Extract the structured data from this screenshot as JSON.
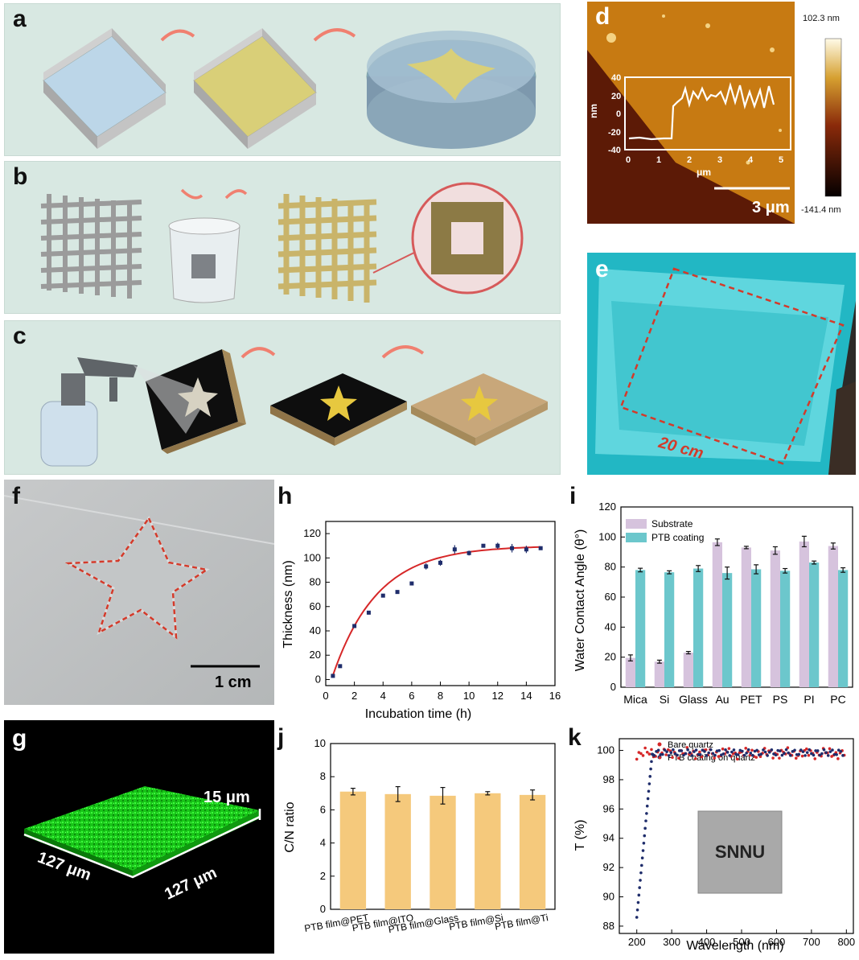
{
  "labels": {
    "a": "a",
    "b": "b",
    "c": "c",
    "d": "d",
    "e": "e",
    "f": "f",
    "g": "g",
    "h": "h",
    "i": "i",
    "j": "j",
    "k": "k"
  },
  "colors": {
    "schematic_bg": "#d8e8e2",
    "red_fit": "#d62728",
    "navy": "#1f2d6b",
    "lavender": "#d6c3dd",
    "teal": "#6cc7cc",
    "orange": "#f5c97c",
    "green": "#1aff1a"
  },
  "afm": {
    "colorbar_max": "102.3 nm",
    "colorbar_min": "-141.4 nm",
    "scale_bar": "3 μm",
    "inset": {
      "ylabel": "nm",
      "xlabel": "μm",
      "yticks": [
        "40",
        "20",
        "0",
        "-20",
        "-40"
      ],
      "xticks": [
        "0",
        "1",
        "2",
        "3",
        "4",
        "5"
      ]
    }
  },
  "photo_e": {
    "dimension": "20 cm"
  },
  "photo_f": {
    "scale_bar": "1 cm"
  },
  "confocal_g": {
    "height": "15 μm",
    "side_left": "127 μm",
    "side_right": "127 μm"
  },
  "photo_k": {
    "text": "SNNU"
  },
  "chart_data": [
    {
      "id": "h",
      "type": "scatter",
      "xlabel": "Incubation time (h)",
      "ylabel": "Thickness (nm)",
      "xlim": [
        0,
        16
      ],
      "ylim": [
        -5,
        130
      ],
      "xticks": [
        "0",
        "2",
        "4",
        "6",
        "8",
        "10",
        "12",
        "14",
        "16"
      ],
      "yticks": [
        "0",
        "20",
        "40",
        "60",
        "80",
        "100",
        "120"
      ],
      "x": [
        0.5,
        1,
        2,
        3,
        4,
        5,
        6,
        7,
        8,
        9,
        10,
        11,
        12,
        13,
        14,
        15
      ],
      "y": [
        3,
        11,
        44,
        55,
        69,
        72,
        79,
        93,
        96,
        107,
        104,
        110,
        110,
        108,
        107,
        108
      ],
      "err": [
        1,
        1,
        1.5,
        1.5,
        1,
        1,
        1,
        2.5,
        2.5,
        3.5,
        2,
        1.5,
        2.5,
        3.5,
        3,
        1
      ],
      "fit": {
        "type": "exponential",
        "a": 110,
        "k": 0.32
      }
    },
    {
      "id": "i",
      "type": "bar",
      "xlabel": "",
      "ylabel": "Water Contact Angle (θ°)",
      "ylim": [
        0,
        120
      ],
      "yticks": [
        "0",
        "20",
        "40",
        "60",
        "80",
        "100",
        "120"
      ],
      "categories": [
        "Mica",
        "Si",
        "Glass",
        "Au",
        "PET",
        "PS",
        "PI",
        "PC"
      ],
      "series": [
        {
          "name": "Substrate",
          "values": [
            19.5,
            17,
            23,
            96.5,
            93,
            91,
            97,
            94
          ],
          "err": [
            2,
            1,
            0.8,
            2.2,
            0.8,
            2.5,
            3.5,
            2
          ]
        },
        {
          "name": "PTB coating",
          "values": [
            78,
            76.5,
            79,
            76,
            78.5,
            77.5,
            83,
            78
          ],
          "err": [
            1.2,
            1,
            2,
            4,
            3,
            1.5,
            1,
            1.5
          ]
        }
      ],
      "legend": "top-left"
    },
    {
      "id": "j",
      "type": "bar",
      "xlabel": "",
      "ylabel": "C/N ratio",
      "ylim": [
        0,
        10
      ],
      "yticks": [
        "0",
        "2",
        "4",
        "6",
        "8",
        "10"
      ],
      "categories": [
        "PTB film@PET",
        "PTB film@ITO",
        "PTB film@Glass",
        "PTB film@Si",
        "PTB film@Ti"
      ],
      "values": [
        7.1,
        6.95,
        6.85,
        7.0,
        6.9
      ],
      "err": [
        0.2,
        0.45,
        0.5,
        0.1,
        0.3
      ]
    },
    {
      "id": "k",
      "type": "scatter",
      "xlabel": "Wavelength (nm)",
      "ylabel": "T (%)",
      "xlim": [
        150,
        820
      ],
      "ylim": [
        87.5,
        100.8
      ],
      "xticks": [
        "200",
        "300",
        "400",
        "500",
        "600",
        "700",
        "800"
      ],
      "yticks": [
        "88",
        "90",
        "92",
        "94",
        "96",
        "98",
        "100"
      ],
      "series": [
        {
          "name": "Bare quartz",
          "color": "#d62728"
        },
        {
          "name": "PTB coating on quartz",
          "color": "#1f2d6b"
        }
      ],
      "legend": "top-center"
    }
  ]
}
